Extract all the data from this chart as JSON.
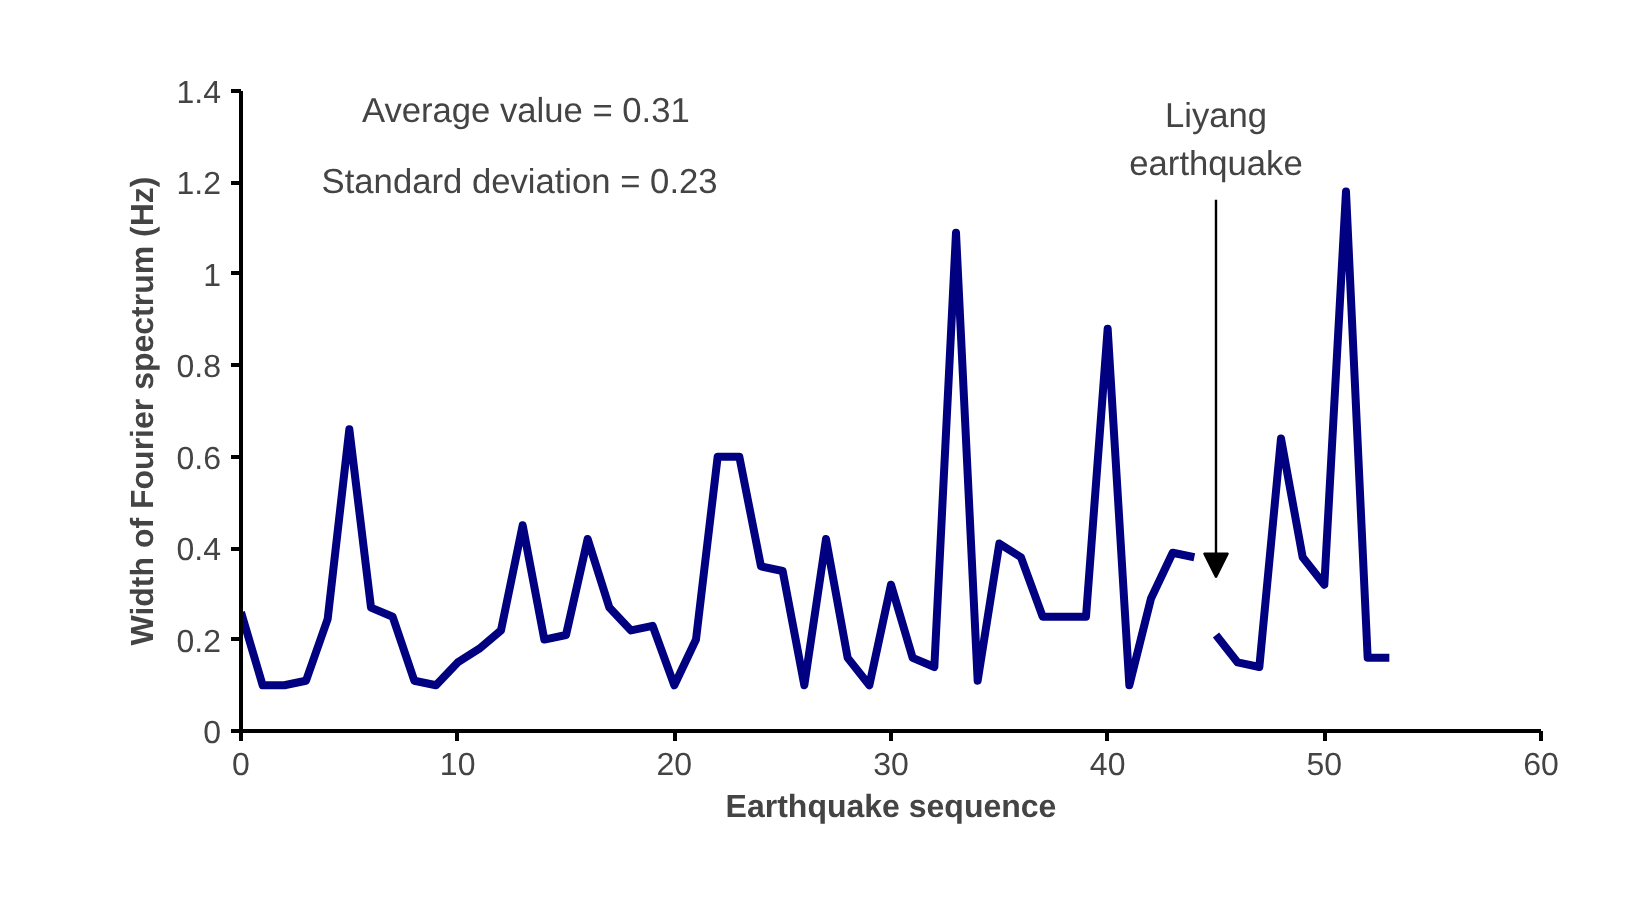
{
  "chart_data": {
    "type": "line",
    "xlabel": "Earthquake sequence",
    "ylabel": "Width of Fourier spectrum (Hz)",
    "series": [
      {
        "color": "#000080",
        "x": [
          0,
          1,
          2,
          3,
          4,
          5,
          6,
          7,
          8,
          9,
          10,
          11,
          12,
          13,
          14,
          15,
          16,
          17,
          18,
          19,
          20,
          21,
          22,
          23,
          24,
          25,
          26,
          27,
          28,
          29,
          30,
          31,
          32,
          33,
          34,
          35,
          36,
          37,
          38,
          39,
          40,
          41,
          42,
          43,
          44
        ],
        "values": [
          0.26,
          0.1,
          0.1,
          0.11,
          0.245,
          0.66,
          0.27,
          0.25,
          0.11,
          0.1,
          0.15,
          0.18,
          0.22,
          0.45,
          0.2,
          0.21,
          0.42,
          0.27,
          0.22,
          0.23,
          0.1,
          0.2,
          0.6,
          0.6,
          0.36,
          0.35,
          0.1,
          0.42,
          0.16,
          0.1,
          0.32,
          0.16,
          0.14,
          1.09,
          0.11,
          0.41,
          0.38,
          0.25,
          0.25,
          0.25,
          0.88,
          0.1,
          0.29,
          0.39,
          0.38
        ]
      },
      {
        "color": "#000080",
        "x": [
          45,
          46,
          47,
          48,
          49,
          50,
          51,
          52,
          53
        ],
        "values": [
          0.21,
          0.15,
          0.14,
          0.64,
          0.38,
          0.32,
          1.18,
          0.16,
          0.16
        ]
      }
    ],
    "xlim": [
      0,
      60
    ],
    "xticks": [
      0,
      10,
      20,
      30,
      40,
      50,
      60
    ],
    "ylim": [
      0,
      1.4
    ],
    "yticks": [
      0,
      0.2,
      0.4,
      0.6,
      0.8,
      1,
      1.2,
      1.4
    ],
    "grid": false,
    "marker": "none",
    "line_style": "solid",
    "annotations": [
      "Average value  = 0.31",
      "Standard deviation = 0.23",
      "Liyang\nearthquake"
    ]
  }
}
